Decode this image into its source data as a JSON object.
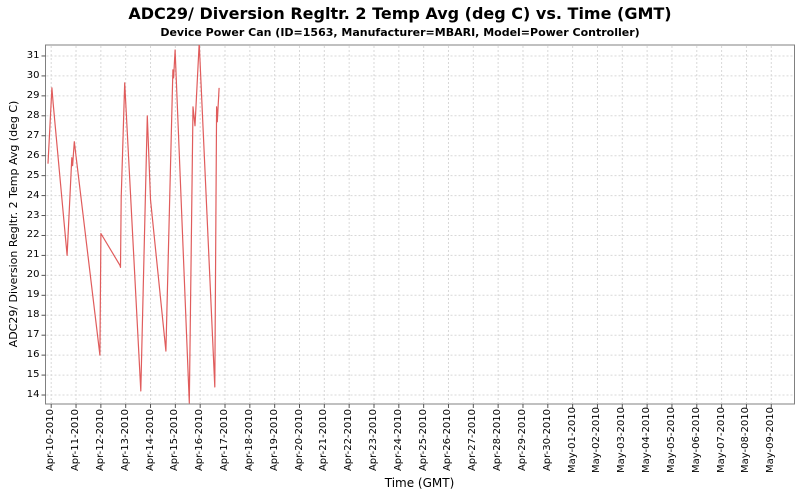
{
  "title": "ADC29/ Diversion Regltr. 2 Temp Avg (deg C) vs. Time (GMT)",
  "subtitle": "Device Power Can (ID=1563, Manufacturer=MBARI, Model=Power Controller)",
  "axes": {
    "x_label": "Time (GMT)",
    "y_label": "ADC29/ Diversion Regltr. 2 Temp Avg (deg C)",
    "y_ticks": [
      31,
      30,
      29,
      28,
      27,
      26,
      25,
      24,
      23,
      22,
      21,
      20,
      19,
      18,
      17,
      16,
      15,
      14
    ],
    "x_ticks": [
      "Apr-10-2010",
      "Apr-11-2010",
      "Apr-12-2010",
      "Apr-13-2010",
      "Apr-14-2010",
      "Apr-15-2010",
      "Apr-16-2010",
      "Apr-17-2010",
      "Apr-18-2010",
      "Apr-19-2010",
      "Apr-20-2010",
      "Apr-21-2010",
      "Apr-22-2010",
      "Apr-23-2010",
      "Apr-24-2010",
      "Apr-25-2010",
      "Apr-26-2010",
      "Apr-27-2010",
      "Apr-28-2010",
      "Apr-29-2010",
      "Apr-30-2010",
      "May-01-2010",
      "May-02-2010",
      "May-03-2010",
      "May-04-2010",
      "May-05-2010",
      "May-06-2010",
      "May-07-2010",
      "May-08-2010",
      "May-09-2010"
    ]
  },
  "chart_data": {
    "type": "line",
    "title": "ADC29/ Diversion Regltr. 2 Temp Avg (deg C) vs. Time (GMT)",
    "xlabel": "Time (GMT)",
    "ylabel": "ADC29/ Diversion Regltr. 2 Temp Avg (deg C)",
    "x_unit": "days after Apr-10-2010 00:00 GMT",
    "x_range": [
      -0.23,
      29.93
    ],
    "ylim": [
      13.55,
      31.55
    ],
    "grid": true,
    "legend": "none",
    "series": [
      {
        "name": "ADC29/ Diversion Regltr. 2 Temp Avg",
        "points": [
          [
            -0.13,
            25.6
          ],
          [
            0.03,
            29.4
          ],
          [
            0.08,
            28.6
          ],
          [
            0.64,
            21.0
          ],
          [
            0.83,
            25.9
          ],
          [
            0.86,
            25.5
          ],
          [
            0.93,
            26.7
          ],
          [
            1.96,
            16.0
          ],
          [
            2.0,
            22.1
          ],
          [
            2.77,
            20.5
          ],
          [
            2.79,
            20.4
          ],
          [
            2.82,
            23.9
          ],
          [
            2.96,
            29.65
          ],
          [
            3.61,
            14.2
          ],
          [
            3.87,
            28.0
          ],
          [
            4.0,
            23.8
          ],
          [
            4.62,
            16.2
          ],
          [
            4.9,
            30.3
          ],
          [
            4.93,
            29.9
          ],
          [
            4.99,
            31.3
          ],
          [
            5.56,
            13.6
          ],
          [
            5.71,
            28.45
          ],
          [
            5.79,
            27.5
          ],
          [
            5.96,
            31.65
          ],
          [
            6.59,
            14.4
          ],
          [
            6.66,
            28.45
          ],
          [
            6.69,
            27.7
          ],
          [
            6.76,
            29.4
          ]
        ]
      }
    ]
  },
  "colors": {
    "line": "#e05c5c",
    "grid": "#d8d8d8",
    "plot_border": "#808080",
    "tick_mark": "#555555",
    "text": "#000000",
    "background": "#ffffff"
  }
}
